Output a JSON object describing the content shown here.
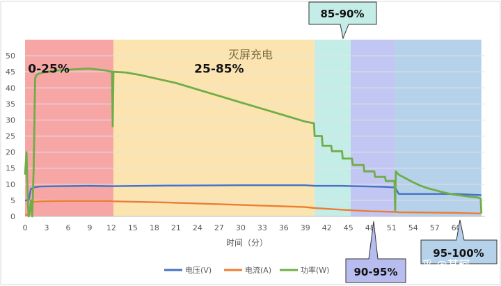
{
  "chart_data": {
    "type": "line",
    "title": "灭屏充电",
    "xlabel": "时间（分）",
    "ylabel": "",
    "xlim": [
      0,
      64
    ],
    "ylim": [
      0,
      55
    ],
    "yticks": [
      0,
      5,
      10,
      15,
      20,
      25,
      30,
      35,
      40,
      45,
      50
    ],
    "xticks": [
      0,
      3,
      6,
      9,
      12,
      15,
      18,
      21,
      24,
      27,
      30,
      33,
      36,
      39,
      42,
      45,
      48,
      51,
      54,
      57,
      60
    ],
    "grid": true,
    "legend_position": "bottom",
    "zones": [
      {
        "label": "0-25%",
        "x_start": 0,
        "x_end": 12.3,
        "color": "#f7a6a6",
        "label_x": 3.3,
        "label_y": 46
      },
      {
        "label": "25-85%",
        "x_start": 12.3,
        "x_end": 40.3,
        "color": "#fbe4b0",
        "label_x": 27,
        "label_y": 46
      },
      {
        "label": "85-90%",
        "x_start": 40.3,
        "x_end": 45.3,
        "color": "#c4ede8",
        "label_x": 42.8,
        "label_y": 0
      },
      {
        "label": "90-95%",
        "x_start": 45.3,
        "x_end": 51.5,
        "color": "#c2c6f2",
        "label_x": 48.4,
        "label_y": 0
      },
      {
        "label": "95-100%",
        "x_start": 51.5,
        "x_end": 63.5,
        "color": "#b6d2ea",
        "label_x": 57.5,
        "label_y": 0
      }
    ],
    "series": [
      {
        "name": "电压(V)",
        "color": "#4472c4",
        "x": [
          0,
          0.5,
          0.8,
          1.2,
          2,
          5,
          9,
          12,
          12.3,
          20,
          30,
          39,
          40.3,
          44,
          48,
          50,
          51.5,
          52,
          60,
          63.5
        ],
        "y": [
          5,
          5,
          8.5,
          9,
          9.3,
          9.4,
          9.5,
          9.4,
          9.4,
          9.6,
          9.7,
          9.7,
          9.5,
          9.5,
          9.3,
          9.2,
          9.0,
          7.0,
          7.0,
          6.6
        ]
      },
      {
        "name": "电流(A)",
        "color": "#ed7d31",
        "x": [
          0,
          0.5,
          0.8,
          1.2,
          2,
          5,
          9,
          12,
          12.3,
          20,
          30,
          39,
          40.3,
          44,
          48,
          51.5,
          52,
          60,
          63.5
        ],
        "y": [
          0.5,
          0.5,
          4,
          4.6,
          4.7,
          4.8,
          4.8,
          4.8,
          4.7,
          4.3,
          3.6,
          2.9,
          2.6,
          2.1,
          1.6,
          1.4,
          1.3,
          1.1,
          0.9
        ]
      },
      {
        "name": "功率(W)",
        "color": "#70ad47",
        "x": [
          0,
          0.2,
          0.4,
          0.5,
          0.7,
          0.8,
          1.0,
          1.2,
          1.4,
          1.6,
          2,
          3,
          5,
          7,
          9,
          11,
          12.1,
          12.2,
          12.3,
          14,
          16,
          18,
          21,
          24,
          27,
          30,
          33,
          36,
          39,
          40.2,
          40.3,
          41.3,
          41.4,
          42.6,
          42.7,
          44.1,
          44.2,
          45.5,
          45.6,
          47.1,
          47.2,
          48.6,
          48.7,
          50.1,
          50.2,
          51.4,
          51.5,
          51.6,
          52,
          53,
          54,
          55,
          56,
          57,
          58,
          59,
          60,
          61,
          62,
          63,
          63.4,
          63.5
        ],
        "y": [
          13,
          20,
          4,
          0,
          2,
          5,
          0,
          15,
          43,
          44,
          44.5,
          45,
          45.5,
          45.8,
          46,
          45.5,
          45,
          28,
          45,
          44.8,
          44,
          43,
          41.5,
          39.5,
          37.5,
          35.5,
          33.5,
          31.5,
          29.5,
          29,
          25,
          25,
          22,
          22,
          20.3,
          20.3,
          18,
          18,
          16,
          16,
          14,
          14,
          12.3,
          12.3,
          11,
          11,
          2,
          14,
          13,
          11.8,
          10.6,
          9.6,
          8.8,
          8.2,
          7.6,
          7.1,
          6.7,
          6.4,
          6.1,
          5.9,
          5.6,
          1
        ]
      }
    ]
  },
  "callouts": [
    {
      "label": "85-90%"
    },
    {
      "label": "90-95%"
    },
    {
      "label": "95-100%"
    }
  ],
  "watermark": "知乎 @某珂"
}
